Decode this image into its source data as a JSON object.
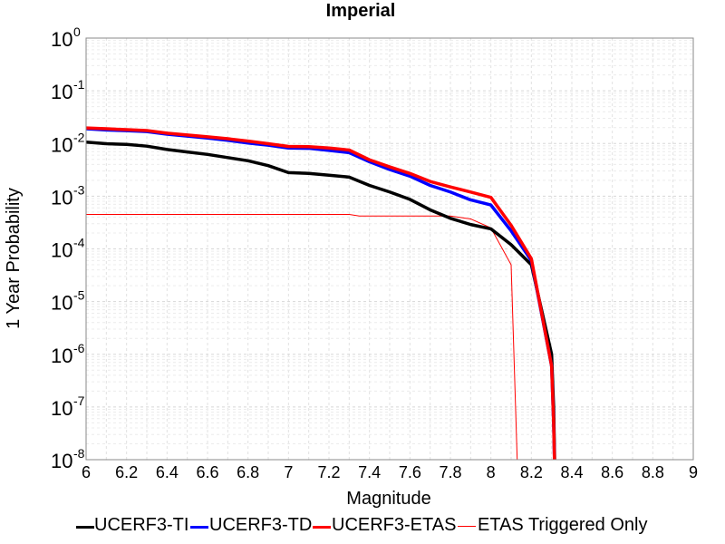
{
  "chart_data": {
    "type": "line",
    "title": "Imperial",
    "xlabel": "Magnitude",
    "ylabel": "1 Year Probability",
    "xlim": [
      6,
      9
    ],
    "ylim": [
      1e-08,
      1
    ],
    "yscale": "log",
    "grid": true,
    "legend_position": "bottom",
    "x_ticks": [
      "6",
      "6.2",
      "6.4",
      "6.6",
      "6.8",
      "7",
      "7.2",
      "7.4",
      "7.6",
      "7.8",
      "8",
      "8.2",
      "8.4",
      "8.6",
      "8.8",
      "9"
    ],
    "y_ticks": [
      {
        "base": "10",
        "exp": "0"
      },
      {
        "base": "10",
        "exp": "-1"
      },
      {
        "base": "10",
        "exp": "-2"
      },
      {
        "base": "10",
        "exp": "-3"
      },
      {
        "base": "10",
        "exp": "-4"
      },
      {
        "base": "10",
        "exp": "-5"
      },
      {
        "base": "10",
        "exp": "-6"
      },
      {
        "base": "10",
        "exp": "-7"
      },
      {
        "base": "10",
        "exp": "-8"
      }
    ],
    "series": [
      {
        "name": "UCERF3-TI",
        "color": "#000000",
        "width": 3.5,
        "x": [
          6.0,
          6.1,
          6.2,
          6.3,
          6.4,
          6.5,
          6.6,
          6.7,
          6.8,
          6.9,
          7.0,
          7.1,
          7.2,
          7.3,
          7.4,
          7.5,
          7.6,
          7.7,
          7.8,
          7.9,
          8.0,
          8.1,
          8.2,
          8.3,
          8.31,
          8.32
        ],
        "y": [
          0.0106,
          0.0099,
          0.0096,
          0.0089,
          0.0077,
          0.0069,
          0.0062,
          0.0054,
          0.0047,
          0.0038,
          0.0028,
          0.0027,
          0.0025,
          0.0023,
          0.0016,
          0.0012,
          0.00087,
          0.00055,
          0.00038,
          0.00029,
          0.00024,
          0.00012,
          5e-05,
          1e-06,
          1e-07,
          1e-09
        ]
      },
      {
        "name": "UCERF3-TD",
        "color": "#0000ff",
        "width": 3.5,
        "x": [
          6.0,
          6.1,
          6.2,
          6.3,
          6.4,
          6.5,
          6.6,
          6.7,
          6.8,
          6.9,
          7.0,
          7.1,
          7.2,
          7.3,
          7.4,
          7.5,
          7.6,
          7.7,
          7.8,
          7.9,
          8.0,
          8.1,
          8.2,
          8.3,
          8.31,
          8.32
        ],
        "y": [
          0.019,
          0.018,
          0.0175,
          0.0168,
          0.015,
          0.0138,
          0.0127,
          0.0115,
          0.0102,
          0.0093,
          0.0082,
          0.0081,
          0.0074,
          0.0067,
          0.0045,
          0.0032,
          0.0024,
          0.0016,
          0.0012,
          0.00085,
          0.00068,
          0.00022,
          6e-05,
          6e-07,
          5e-08,
          1e-09
        ]
      },
      {
        "name": "UCERF3-ETAS",
        "color": "#ff0000",
        "width": 3.5,
        "x": [
          6.0,
          6.1,
          6.2,
          6.3,
          6.4,
          6.5,
          6.6,
          6.7,
          6.8,
          6.9,
          7.0,
          7.1,
          7.2,
          7.3,
          7.4,
          7.5,
          7.6,
          7.7,
          7.8,
          7.9,
          8.0,
          8.1,
          8.2,
          8.3,
          8.31,
          8.32
        ],
        "y": [
          0.0197,
          0.019,
          0.0183,
          0.0176,
          0.0157,
          0.0145,
          0.0134,
          0.0123,
          0.0111,
          0.0099,
          0.0088,
          0.0087,
          0.0082,
          0.0075,
          0.0049,
          0.0036,
          0.0027,
          0.0019,
          0.0015,
          0.0012,
          0.00095,
          0.00028,
          6.5e-05,
          6e-07,
          5e-08,
          1e-09
        ]
      },
      {
        "name": "ETAS Triggered Only",
        "color": "#ff0000",
        "width": 1,
        "x": [
          6.0,
          6.5,
          7.0,
          7.3,
          7.35,
          7.6,
          7.8,
          7.9,
          8.0,
          8.1,
          8.13,
          8.135
        ],
        "y": [
          0.00045,
          0.00045,
          0.00045,
          0.00045,
          0.00042,
          0.00042,
          0.00042,
          0.00037,
          0.00025,
          5e-05,
          1e-08,
          1e-09
        ]
      }
    ]
  }
}
